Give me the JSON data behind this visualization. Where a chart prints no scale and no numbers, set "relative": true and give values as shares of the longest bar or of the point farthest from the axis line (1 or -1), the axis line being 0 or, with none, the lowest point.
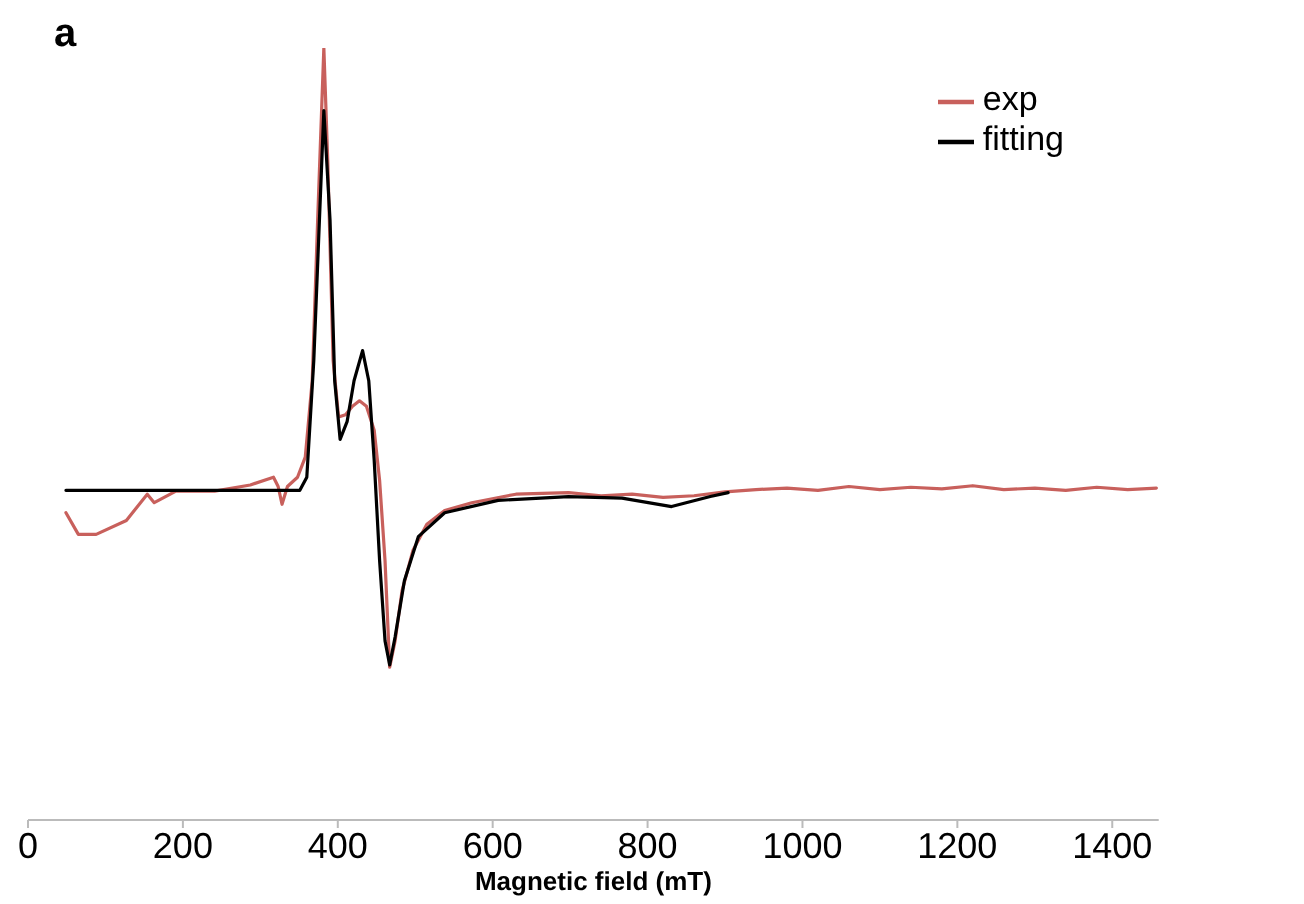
{
  "chart_data": {
    "type": "line",
    "title": "a",
    "xlabel": "Magnetic field (mT)",
    "relative": true,
    "xlim": [
      0,
      1460
    ],
    "xticks": [
      0,
      200,
      400,
      600,
      800,
      1000,
      1200,
      1400
    ],
    "legend": "top right",
    "grid": false,
    "marker": "none",
    "line_style": "solid",
    "series": [
      {
        "name": "exp",
        "color": "#c8605c",
        "x": [
          49,
          65,
          88,
          127,
          154,
          163,
          191,
          241,
          287,
          317,
          323,
          328,
          335,
          348,
          358,
          367,
          374,
          382,
          387,
          394,
          401,
          410,
          419,
          428,
          437,
          447,
          454,
          461,
          467,
          474,
          483,
          497,
          515,
          538,
          573,
          630,
          698,
          740,
          780,
          820,
          860,
          900,
          940,
          980,
          1020,
          1060,
          1100,
          1140,
          1180,
          1220,
          1260,
          1300,
          1340,
          1380,
          1420,
          1457
        ],
        "values": [
          0.398,
          0.37,
          0.37,
          0.388,
          0.422,
          0.411,
          0.426,
          0.426,
          0.434,
          0.444,
          0.432,
          0.409,
          0.432,
          0.444,
          0.47,
          0.569,
          0.777,
          1.0,
          0.855,
          0.595,
          0.522,
          0.525,
          0.536,
          0.543,
          0.536,
          0.505,
          0.44,
          0.336,
          0.198,
          0.232,
          0.297,
          0.349,
          0.383,
          0.401,
          0.411,
          0.422,
          0.424,
          0.42,
          0.422,
          0.418,
          0.42,
          0.425,
          0.428,
          0.43,
          0.427,
          0.432,
          0.428,
          0.431,
          0.429,
          0.433,
          0.428,
          0.43,
          0.427,
          0.431,
          0.428,
          0.43
        ]
      },
      {
        "name": "fitting",
        "color": "#000000",
        "x": [
          49,
          351,
          360,
          369,
          382,
          390,
          396,
          403,
          412,
          421,
          432,
          440,
          447,
          454,
          461,
          467,
          474,
          486,
          504,
          538,
          607,
          698,
          767,
          831,
          881,
          904
        ],
        "values": [
          0.427,
          0.427,
          0.444,
          0.595,
          0.919,
          0.777,
          0.569,
          0.493,
          0.516,
          0.569,
          0.608,
          0.569,
          0.466,
          0.336,
          0.232,
          0.201,
          0.237,
          0.31,
          0.367,
          0.398,
          0.414,
          0.419,
          0.417,
          0.406,
          0.419,
          0.424
        ]
      }
    ]
  }
}
